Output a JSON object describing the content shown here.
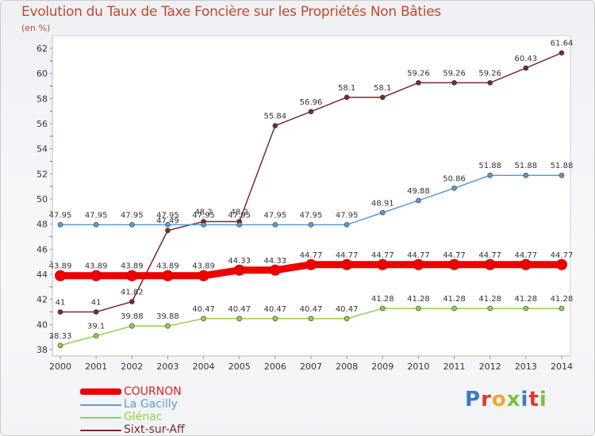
{
  "header": {
    "title": "Evolution du Taux de Taxe Foncière sur les Propriétés Non Bâties",
    "unit": "(en %)"
  },
  "logo": {
    "text": "Proxiti"
  },
  "chart_data": {
    "type": "line",
    "title": "Evolution du Taux de Taxe Foncière sur les Propriétés Non Bâties",
    "ylabel": "(en %)",
    "xlabel": "",
    "ylim": [
      38,
      62
    ],
    "yticks": [
      38,
      40,
      42,
      44,
      46,
      48,
      50,
      52,
      54,
      56,
      58,
      60,
      62
    ],
    "grid": false,
    "legend_position": "bottom-left",
    "x": [
      "2000",
      "2001",
      "2002",
      "2003",
      "2004",
      "2005",
      "2006",
      "2007",
      "2008",
      "2009",
      "2010",
      "2011",
      "2012",
      "2013",
      "2014"
    ],
    "series": [
      {
        "name": "COURNON",
        "color": "#ee0000",
        "emphasis": true,
        "values": [
          43.89,
          43.89,
          43.89,
          43.89,
          43.89,
          44.33,
          44.33,
          44.77,
          44.77,
          44.77,
          44.77,
          44.77,
          44.77,
          44.77,
          44.77
        ],
        "labels": [
          "43.89",
          "43.89",
          "43.89",
          "43.89",
          "43.89",
          "44.33",
          "44.33",
          "44.77",
          "44.77",
          "44.77",
          "44.77",
          "44.77",
          "44.77",
          "44.77",
          "44.77"
        ]
      },
      {
        "name": "La Gacilly",
        "color": "#5b9bd5",
        "emphasis": false,
        "values": [
          47.95,
          47.95,
          47.95,
          47.95,
          47.95,
          47.95,
          47.95,
          47.95,
          47.95,
          48.91,
          49.88,
          50.86,
          51.88,
          51.88,
          51.88
        ],
        "labels": [
          "47.95",
          "47.95",
          "47.95",
          "47.95",
          "47.95",
          "47.95",
          "47.95",
          "47.95",
          "47.95",
          "48.91",
          "49.88",
          "50.86",
          "51.88",
          "51.88",
          "51.88"
        ]
      },
      {
        "name": "Glénac",
        "color": "#8fd14f",
        "emphasis": false,
        "values": [
          38.33,
          39.1,
          39.88,
          39.88,
          40.47,
          40.47,
          40.47,
          40.47,
          40.47,
          41.28,
          41.28,
          41.28,
          41.28,
          41.28,
          41.28
        ],
        "labels": [
          "38.33",
          "39.1",
          "39.88",
          "39.88",
          "40.47",
          "40.47",
          "40.47",
          "40.47",
          "40.47",
          "41.28",
          "41.28",
          "41.28",
          "41.28",
          "41.28",
          "41.28"
        ]
      },
      {
        "name": "Sixt-sur-Aff",
        "color": "#7a2a2a",
        "emphasis": false,
        "values": [
          41,
          41,
          41.82,
          47.49,
          48.2,
          48.2,
          55.84,
          56.96,
          58.1,
          58.1,
          59.26,
          59.26,
          59.26,
          60.43,
          61.64
        ],
        "labels": [
          "41",
          "41",
          "41.82",
          "47.49",
          "48.2",
          "48.2",
          "55.84",
          "56.96",
          "58.1",
          "58.1",
          "59.26",
          "59.26",
          "59.26",
          "60.43",
          "61.64"
        ]
      }
    ]
  }
}
